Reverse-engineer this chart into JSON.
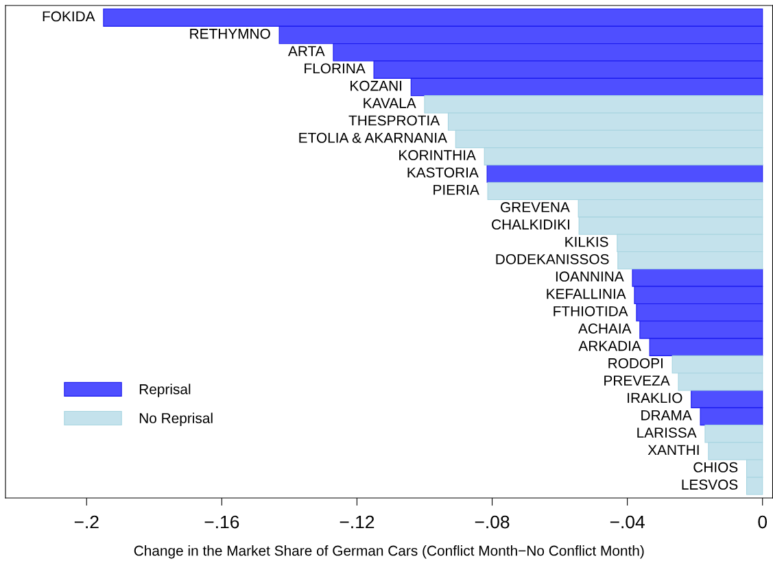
{
  "chart_data": {
    "type": "bar",
    "orientation": "horizontal",
    "xlabel": "Change in the Market Share of German Cars (Conflict Month−No Conflict Month)",
    "categories": [
      "FOKIDA",
      "RETHYMNO",
      "ARTA",
      "FLORINA",
      "KOZANI",
      "KAVALA",
      "THESPROTIA",
      "ETOLIA & AKARNANIA",
      "KORINTHIA",
      "KASTORIA",
      "PIERIA",
      "GREVENA",
      "CHALKIDIKI",
      "KILKIS",
      "DODEKANISSOS",
      "IOANNINA",
      "KEFALLINIA",
      "FTHIOTIDA",
      "ACHAIA",
      "ARKADIA",
      "RODOPI",
      "PREVEZA",
      "IRAKLIO",
      "DRAMA",
      "LARISSA",
      "XANTHI",
      "CHIOS",
      "LESVOS"
    ],
    "series": [
      {
        "name": "Reprisal",
        "color": "#4f4fff",
        "values": [
          -0.195,
          -0.143,
          -0.127,
          -0.115,
          -0.104,
          null,
          null,
          null,
          null,
          -0.0815,
          null,
          null,
          null,
          null,
          null,
          -0.0385,
          -0.0379,
          -0.0373,
          -0.0363,
          -0.0334,
          null,
          null,
          -0.0211,
          -0.0184,
          null,
          null,
          null,
          null
        ]
      },
      {
        "name": "No Reprisal",
        "color": "#c4e2ec",
        "values": [
          null,
          null,
          null,
          null,
          null,
          -0.1,
          -0.093,
          -0.0908,
          -0.0823,
          null,
          -0.0813,
          -0.0545,
          -0.0543,
          -0.043,
          -0.0428,
          null,
          null,
          null,
          null,
          null,
          -0.0267,
          -0.0249,
          null,
          null,
          -0.017,
          -0.016,
          -0.0047,
          -0.0047
        ]
      }
    ],
    "xlim": [
      -0.224,
      0.003
    ],
    "xticks": [
      {
        "value": -0.2,
        "label": "−.2"
      },
      {
        "value": -0.16,
        "label": "−.16"
      },
      {
        "value": -0.12,
        "label": "−.12"
      },
      {
        "value": -0.08,
        "label": "−.08"
      },
      {
        "value": -0.04,
        "label": "−.04"
      },
      0
    ],
    "tick_labels": "x",
    "grid": false,
    "legend": "bottom left"
  }
}
